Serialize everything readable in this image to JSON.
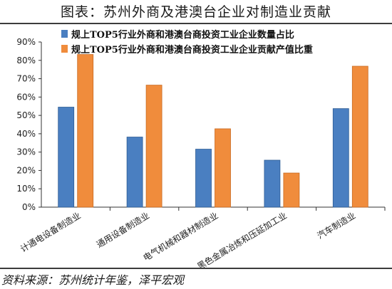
{
  "header": {
    "title": "图表：苏州外商及港澳台企业对制造业贡献"
  },
  "footer": {
    "source": "资料来源：苏州统计年鉴，泽平宏观"
  },
  "chart_data": {
    "type": "bar",
    "categories": [
      "计通电设备制造业",
      "通用设备制造业",
      "电气机械和器材制造业",
      "黑色金属冶炼和压延加工业",
      "汽车制造业"
    ],
    "series": [
      {
        "name": "规上TOP5行业外商和港澳台商投资工业企业数量占比",
        "values": [
          54.5,
          38.2,
          31.6,
          25.6,
          53.7
        ],
        "color": "#4a7fc1"
      },
      {
        "name": "规上TOP5行业外商和港澳台商投资工业企业贡献产值比重",
        "values": [
          83.2,
          66.5,
          42.7,
          18.6,
          76.8
        ],
        "color": "#f08c3c"
      }
    ],
    "ylim": [
      0,
      90
    ],
    "yticks": [
      "0%",
      "10%",
      "20%",
      "30%",
      "40%",
      "50%",
      "60%",
      "70%",
      "80%",
      "90%"
    ],
    "xlabel": "",
    "ylabel": "",
    "legend_position": "top-left",
    "grid": false
  }
}
